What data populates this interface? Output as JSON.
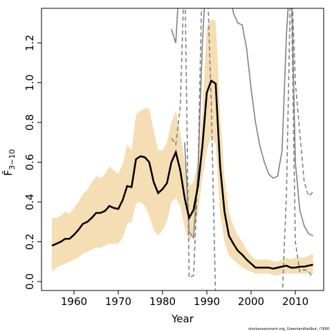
{
  "chart_data": {
    "type": "line",
    "xlabel": "Year",
    "ylabel": "F̄",
    "ylabel_subscript": "3−10",
    "footer": "stockassessment.org, Greenlandhalibut, r7690",
    "xlim": [
      1952.66,
      2016.4
    ],
    "ylim": [
      -0.045,
      1.374
    ],
    "xticks": [
      1960,
      1970,
      1980,
      1990,
      2000,
      2010
    ],
    "yticks": [
      {
        "value": 0,
        "label": "0.0"
      },
      0.2,
      0.4,
      0.6,
      0.8,
      {
        "value": 1,
        "label": "1.0"
      },
      1.2
    ],
    "x": [
      1955,
      1956,
      1957,
      1958,
      1959,
      1960,
      1961,
      1962,
      1963,
      1964,
      1965,
      1966,
      1967,
      1968,
      1969,
      1970,
      1971,
      1972,
      1973,
      1974,
      1975,
      1976,
      1977,
      1978,
      1979,
      1980,
      1981,
      1982,
      1983,
      1984,
      1985,
      1986,
      1987,
      1988,
      1989,
      1990,
      1991,
      1992,
      1993,
      1994,
      1995,
      1996,
      1997,
      1998,
      1999,
      2000,
      2001,
      2002,
      2003,
      2004,
      2005,
      2006,
      2007,
      2008,
      2009,
      2010,
      2011,
      2012,
      2013,
      2014
    ],
    "values": [
      0.18,
      0.19,
      0.2,
      0.215,
      0.215,
      0.235,
      0.26,
      0.29,
      0.3,
      0.32,
      0.345,
      0.345,
      0.355,
      0.38,
      0.37,
      0.365,
      0.41,
      0.48,
      0.475,
      0.615,
      0.63,
      0.625,
      0.6,
      0.5,
      0.445,
      0.465,
      0.495,
      0.6,
      0.65,
      0.56,
      0.42,
      0.32,
      0.36,
      0.48,
      0.68,
      0.95,
      1.01,
      0.995,
      0.58,
      0.35,
      0.23,
      0.19,
      0.155,
      0.135,
      0.11,
      0.09,
      0.07,
      0.07,
      0.07,
      0.07,
      0.065,
      0.07,
      0.075,
      0.08,
      0.07,
      0.07,
      0.075,
      0.075,
      0.08,
      0.085
    ],
    "color": "#000000",
    "band": {
      "color": "#f5deb3",
      "upper": [
        0.32,
        0.32,
        0.33,
        0.35,
        0.34,
        0.37,
        0.4,
        0.44,
        0.46,
        0.5,
        0.53,
        0.52,
        0.54,
        0.58,
        0.56,
        0.54,
        0.59,
        0.69,
        0.66,
        0.84,
        0.86,
        0.87,
        0.87,
        0.76,
        0.66,
        0.66,
        0.7,
        0.8,
        0.86,
        0.75,
        0.6,
        0.48,
        0.5,
        0.6,
        0.85,
        1.28,
        1.32,
        1.31,
        0.85,
        0.52,
        0.35,
        0.28,
        0.23,
        0.2,
        0.16,
        0.13,
        0.11,
        0.11,
        0.11,
        0.11,
        0.1,
        0.1,
        0.11,
        0.12,
        0.11,
        0.12,
        0.12,
        0.12,
        0.13,
        0.14
      ],
      "lower": [
        0.05,
        0.07,
        0.08,
        0.09,
        0.1,
        0.11,
        0.12,
        0.14,
        0.15,
        0.16,
        0.17,
        0.17,
        0.18,
        0.19,
        0.19,
        0.19,
        0.22,
        0.29,
        0.3,
        0.39,
        0.4,
        0.38,
        0.33,
        0.26,
        0.23,
        0.26,
        0.3,
        0.4,
        0.42,
        0.38,
        0.27,
        0.2,
        0.24,
        0.34,
        0.52,
        0.66,
        0.73,
        0.69,
        0.34,
        0.2,
        0.13,
        0.11,
        0.09,
        0.07,
        0.06,
        0.05,
        0.04,
        0.04,
        0.04,
        0.04,
        0.03,
        0.03,
        0.04,
        0.04,
        0.04,
        0.04,
        0.04,
        0.04,
        0.04,
        0.04
      ]
    },
    "series": [
      {
        "color": "#808080",
        "dash": false,
        "x": [
          1982,
          1983,
          1984,
          1995,
          1996,
          1997,
          1998,
          1999,
          2000,
          2001,
          2002,
          2003,
          2004,
          2005,
          2006,
          2007,
          2008,
          2009,
          2010,
          2011,
          2012,
          2013,
          2014
        ],
        "values": [
          1.27,
          1.2,
          1.6,
          1.5,
          1.35,
          1.3,
          1.29,
          1.17,
          0.97,
          0.8,
          0.68,
          0.6,
          0.54,
          0.52,
          0.53,
          0.66,
          1.25,
          1.6,
          0.6,
          0.36,
          0.28,
          0.24,
          0.23
        ]
      },
      {
        "color": "#808080",
        "dash": false,
        "x": [
          1985,
          1986,
          1987,
          1988,
          1989,
          1990
        ],
        "values": [
          0.7,
          0.25,
          0.22,
          0.55,
          1.2,
          1.6
        ]
      },
      {
        "color": "#808080",
        "dash": true,
        "x": [
          1982,
          1983,
          1984,
          1985,
          1986,
          1987,
          1988,
          1989
        ],
        "values": [
          0.72,
          0.69,
          0.88,
          1.6,
          0.02,
          0.03,
          0.55,
          1.6
        ]
      },
      {
        "color": "#808080",
        "dash": true,
        "x": [
          1990,
          1991,
          1992
        ],
        "values": [
          1.6,
          0.9,
          -0.1
        ]
      },
      {
        "color": "#808080",
        "dash": true,
        "x": [
          2007,
          2008,
          2009,
          2010,
          2011,
          2012,
          2013,
          2014
        ],
        "values": [
          -0.1,
          0.45,
          1.6,
          0.2,
          0.05,
          0.06,
          0.05,
          0.02
        ]
      },
      {
        "color": "#808080",
        "dash": true,
        "x": [
          2009,
          2010,
          2011,
          2012,
          2013,
          2014
        ],
        "values": [
          1.6,
          1.0,
          0.75,
          0.5,
          0.43,
          0.45
        ]
      }
    ]
  }
}
